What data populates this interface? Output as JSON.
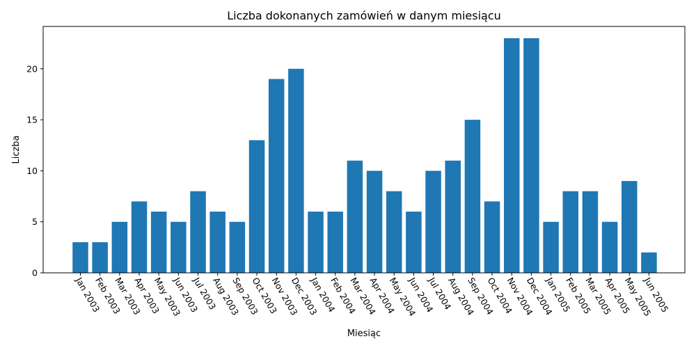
{
  "chart_data": {
    "type": "bar",
    "title": "Liczba dokonanych zamówień w danym miesiącu",
    "xlabel": "Miesiąc",
    "ylabel": "Liczba",
    "categories": [
      "Jan 2003",
      "Feb 2003",
      "Mar 2003",
      "Apr 2003",
      "May 2003",
      "Jun 2003",
      "Jul 2003",
      "Aug 2003",
      "Sep 2003",
      "Oct 2003",
      "Nov 2003",
      "Dec 2003",
      "Jan 2004",
      "Feb 2004",
      "Mar 2004",
      "Apr 2004",
      "May 2004",
      "Jun 2004",
      "Jul 2004",
      "Aug 2004",
      "Sep 2004",
      "Oct 2004",
      "Nov 2004",
      "Dec 2004",
      "Jan 2005",
      "Feb 2005",
      "Mar 2005",
      "Apr 2005",
      "May 2005",
      "Jun 2005"
    ],
    "values": [
      3,
      3,
      5,
      7,
      6,
      5,
      8,
      6,
      5,
      13,
      19,
      20,
      6,
      6,
      11,
      10,
      8,
      6,
      10,
      11,
      15,
      7,
      23,
      23,
      5,
      8,
      8,
      5,
      9,
      2
    ],
    "ylim": [
      0,
      24.15
    ],
    "yticks": [
      0,
      5,
      10,
      15,
      20
    ],
    "grid": false,
    "bar_color": "#1f77b4",
    "xtick_rotation": "-60deg"
  }
}
